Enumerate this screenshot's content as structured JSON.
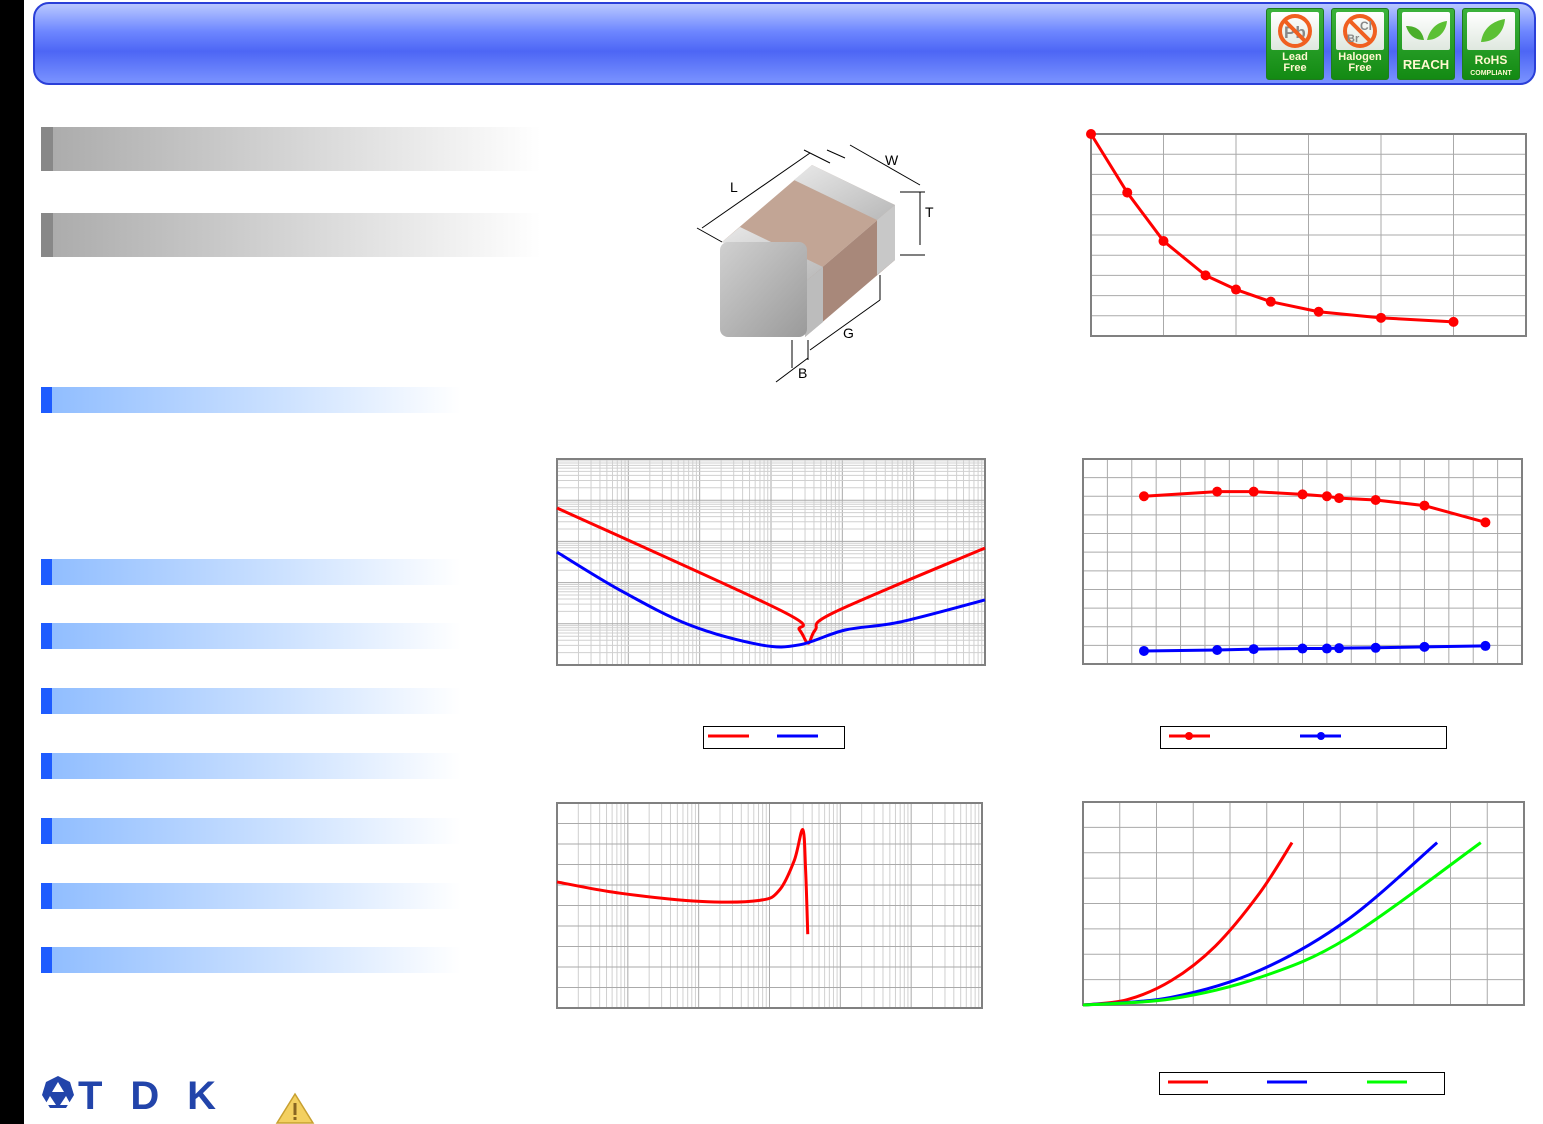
{
  "header": {
    "badges": [
      {
        "icon": "no-lead-icon",
        "symbol": "Pb",
        "line1": "Lead",
        "line2": "Free"
      },
      {
        "icon": "no-halogen-icon",
        "symbol1": "Br",
        "symbol2": "Cl",
        "line1": "Halogen",
        "line2": "Free"
      },
      {
        "icon": "leaves-icon",
        "line1": "REACH"
      },
      {
        "icon": "leaf-icon",
        "line1": "RoHS",
        "line2": "COMPLIANT"
      }
    ]
  },
  "diagram": {
    "labels": {
      "L": "L",
      "W": "W",
      "T": "T",
      "G": "G",
      "B": "B"
    }
  },
  "footer": {
    "logo": "TDK",
    "warning_icon": "warning-icon"
  },
  "colors": {
    "red": "#ff0000",
    "blue": "#0000ff",
    "green": "#00ff00",
    "grid": "#bbbbbb",
    "section_blue": "#1e5cff"
  },
  "chart_data": [
    {
      "type": "line",
      "scale": "linear",
      "grid": true,
      "markers": true,
      "series": [
        {
          "color": "#ff0000",
          "x": [
            0,
            0.5,
            1,
            1.58,
            2,
            2.48,
            3.14,
            4,
            5
          ],
          "y": [
            10,
            7.1,
            4.7,
            3.0,
            2.3,
            1.7,
            1.2,
            0.9,
            0.7
          ]
        }
      ]
    },
    {
      "type": "line",
      "scale": "log-log",
      "grid": true,
      "markers": false,
      "legend": "below",
      "series": [
        {
          "color": "#ff0000",
          "x": [
            0,
            3.13,
            3.4,
            3.52,
            3.62,
            3.9,
            6
          ],
          "y": [
            3.81,
            1.33,
            0.85,
            0.53,
            0.85,
            1.29,
            2.84
          ]
        },
        {
          "color": "#0000ff",
          "x": [
            0,
            0.88,
            1.86,
            2.85,
            3.4,
            4.04,
            4.8,
            6
          ],
          "y": [
            2.74,
            1.82,
            0.97,
            0.49,
            0.49,
            0.85,
            1.04,
            1.58
          ]
        }
      ]
    },
    {
      "type": "line",
      "scale": "linear",
      "grid": true,
      "markers": true,
      "legend": "below",
      "series": [
        {
          "color": "#ff0000",
          "x": [
            2.5,
            5.5,
            7,
            9,
            10,
            10.5,
            12,
            14,
            16.5
          ],
          "y": [
            9.0,
            9.25,
            9.25,
            9.1,
            9.0,
            8.9,
            8.8,
            8.5,
            7.6
          ]
        },
        {
          "color": "#0000ff",
          "x": [
            2.5,
            5.5,
            7,
            9,
            10,
            10.5,
            12,
            14,
            16.5
          ],
          "y": [
            0.7,
            0.75,
            0.8,
            0.83,
            0.83,
            0.85,
            0.87,
            0.92,
            0.97
          ]
        }
      ]
    },
    {
      "type": "line",
      "scale": "log-x",
      "grid": true,
      "markers": false,
      "series": [
        {
          "color": "#ff0000",
          "x": [
            0,
            0.89,
            2.02,
            2.86,
            3.14,
            3.35,
            3.47,
            3.51,
            3.54
          ],
          "y": [
            6.15,
            5.6,
            5.2,
            5.25,
            5.75,
            7.2,
            8.7,
            6.7,
            3.6
          ]
        }
      ]
    },
    {
      "type": "line",
      "scale": "linear",
      "grid": true,
      "markers": false,
      "legend": "below",
      "series": [
        {
          "color": "#ff0000",
          "x": [
            0,
            1,
            2,
            3,
            4,
            4.74
          ],
          "y": [
            0,
            0.26,
            1.2,
            2.9,
            5.5,
            8
          ]
        },
        {
          "color": "#0000ff",
          "x": [
            0,
            2,
            4,
            6,
            8.03
          ],
          "y": [
            0,
            0.38,
            1.7,
            4.2,
            8
          ]
        },
        {
          "color": "#00ff00",
          "x": [
            0,
            2,
            4,
            6,
            9.02
          ],
          "y": [
            0,
            0.3,
            1.35,
            3.3,
            8
          ]
        }
      ]
    }
  ]
}
